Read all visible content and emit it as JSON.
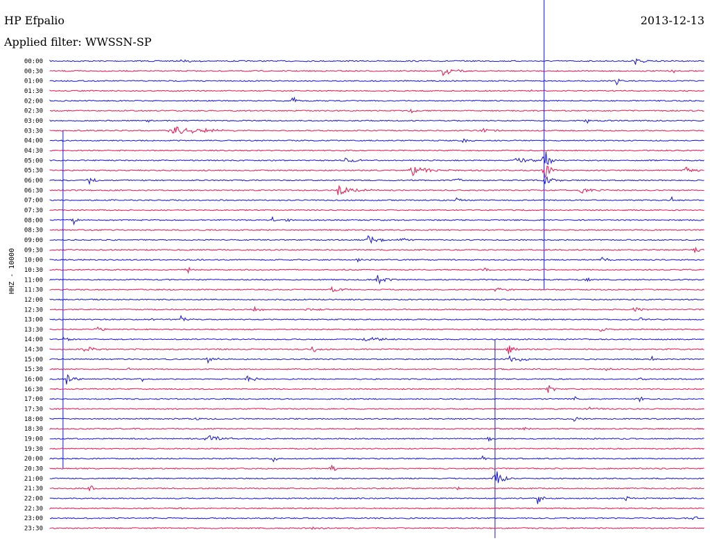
{
  "header": {
    "station": "HP Efpalio",
    "date": "2013-12-13",
    "filter": "Applied filter: WWSSN-SP",
    "channel_label": "HHZ - 10000"
  },
  "colors": {
    "blue": "#1010e0",
    "red": "#f0104a"
  },
  "chart_data": {
    "type": "line",
    "title": "",
    "rows": [
      "00:00",
      "00:30",
      "01:00",
      "01:30",
      "02:00",
      "02:30",
      "03:00",
      "03:30",
      "04:00",
      "04:30",
      "05:00",
      "05:30",
      "06:00",
      "06:30",
      "07:00",
      "07:30",
      "08:00",
      "08:30",
      "09:00",
      "09:30",
      "10:00",
      "10:30",
      "11:00",
      "11:30",
      "12:00",
      "12:30",
      "13:00",
      "13:30",
      "14:00",
      "14:30",
      "15:00",
      "15:30",
      "16:00",
      "16:30",
      "17:00",
      "17:30",
      "18:00",
      "18:30",
      "19:00",
      "19:30",
      "20:00",
      "20:30",
      "21:00",
      "21:30",
      "22:00",
      "22:30",
      "23:00",
      "23:30"
    ],
    "row_colors": [
      "blue",
      "red"
    ],
    "events": [
      {
        "row": 0,
        "x": 0.2,
        "amp": 0.3,
        "dur": 0.03
      },
      {
        "row": 0,
        "x": 0.893,
        "amp": 0.9,
        "dur": 0.02
      },
      {
        "row": 1,
        "x": 0.6,
        "amp": 0.9,
        "dur": 0.03
      },
      {
        "row": 1,
        "x": 0.95,
        "amp": 0.4,
        "dur": 0.01
      },
      {
        "row": 2,
        "x": 0.865,
        "amp": 1.0,
        "dur": 0.01
      },
      {
        "row": 3,
        "x": 0.73,
        "amp": 0.4,
        "dur": 0.01
      },
      {
        "row": 4,
        "x": 0.37,
        "amp": 1.0,
        "dur": 0.01
      },
      {
        "row": 5,
        "x": 0.55,
        "amp": 0.6,
        "dur": 0.01
      },
      {
        "row": 6,
        "x": 0.15,
        "amp": 0.4,
        "dur": 0.01
      },
      {
        "row": 6,
        "x": 0.82,
        "amp": 0.8,
        "dur": 0.01
      },
      {
        "row": 7,
        "x": 0.185,
        "amp": 0.9,
        "dur": 0.09
      },
      {
        "row": 7,
        "x": 0.66,
        "amp": 0.5,
        "dur": 0.04
      },
      {
        "row": 8,
        "x": 0.63,
        "amp": 0.3,
        "dur": 0.04
      },
      {
        "row": 10,
        "x": 0.45,
        "amp": 0.4,
        "dur": 0.04
      },
      {
        "row": 10,
        "x": 0.71,
        "amp": 0.5,
        "dur": 0.06
      },
      {
        "row": 10,
        "x": 0.755,
        "amp": 2.5,
        "dur": 0.015
      },
      {
        "row": 11,
        "x": 0.55,
        "amp": 0.9,
        "dur": 0.06
      },
      {
        "row": 11,
        "x": 0.755,
        "amp": 1.5,
        "dur": 0.02
      },
      {
        "row": 11,
        "x": 0.97,
        "amp": 0.7,
        "dur": 0.03
      },
      {
        "row": 12,
        "x": 0.06,
        "amp": 0.6,
        "dur": 0.02
      },
      {
        "row": 12,
        "x": 0.62,
        "amp": 1.0,
        "dur": 0.01
      },
      {
        "row": 12,
        "x": 0.755,
        "amp": 1.3,
        "dur": 0.02
      },
      {
        "row": 13,
        "x": 0.29,
        "amp": 0.5,
        "dur": 0.01
      },
      {
        "row": 13,
        "x": 0.44,
        "amp": 0.8,
        "dur": 0.05
      },
      {
        "row": 13,
        "x": 0.81,
        "amp": 0.6,
        "dur": 0.04
      },
      {
        "row": 14,
        "x": 0.62,
        "amp": 0.8,
        "dur": 0.01
      },
      {
        "row": 14,
        "x": 0.95,
        "amp": 0.5,
        "dur": 0.01
      },
      {
        "row": 16,
        "x": 0.035,
        "amp": 0.9,
        "dur": 0.01
      },
      {
        "row": 16,
        "x": 0.34,
        "amp": 0.9,
        "dur": 0.01
      },
      {
        "row": 16,
        "x": 0.36,
        "amp": 0.7,
        "dur": 0.01
      },
      {
        "row": 18,
        "x": 0.485,
        "amp": 0.9,
        "dur": 0.03
      },
      {
        "row": 18,
        "x": 0.53,
        "amp": 0.5,
        "dur": 0.03
      },
      {
        "row": 19,
        "x": 0.985,
        "amp": 0.9,
        "dur": 0.01
      },
      {
        "row": 20,
        "x": 0.47,
        "amp": 0.5,
        "dur": 0.02
      },
      {
        "row": 20,
        "x": 0.84,
        "amp": 0.6,
        "dur": 0.02
      },
      {
        "row": 21,
        "x": 0.21,
        "amp": 0.6,
        "dur": 0.01
      },
      {
        "row": 21,
        "x": 0.66,
        "amp": 0.4,
        "dur": 0.03
      },
      {
        "row": 22,
        "x": 0.5,
        "amp": 1.0,
        "dur": 0.02
      },
      {
        "row": 22,
        "x": 0.73,
        "amp": 0.5,
        "dur": 0.01
      },
      {
        "row": 22,
        "x": 0.82,
        "amp": 0.6,
        "dur": 0.01
      },
      {
        "row": 23,
        "x": 0.43,
        "amp": 0.4,
        "dur": 0.05
      },
      {
        "row": 23,
        "x": 0.68,
        "amp": 0.4,
        "dur": 0.03
      },
      {
        "row": 25,
        "x": 0.31,
        "amp": 0.6,
        "dur": 0.02
      },
      {
        "row": 25,
        "x": 0.39,
        "amp": 0.4,
        "dur": 0.03
      },
      {
        "row": 25,
        "x": 0.89,
        "amp": 0.8,
        "dur": 0.02
      },
      {
        "row": 26,
        "x": 0.15,
        "amp": 0.6,
        "dur": 0.01
      },
      {
        "row": 26,
        "x": 0.2,
        "amp": 0.7,
        "dur": 0.02
      },
      {
        "row": 26,
        "x": 0.9,
        "amp": 0.5,
        "dur": 0.02
      },
      {
        "row": 27,
        "x": 0.07,
        "amp": 0.5,
        "dur": 0.02
      },
      {
        "row": 27,
        "x": 0.84,
        "amp": 0.5,
        "dur": 0.02
      },
      {
        "row": 28,
        "x": 0.02,
        "amp": 0.4,
        "dur": 0.02
      },
      {
        "row": 28,
        "x": 0.48,
        "amp": 0.6,
        "dur": 0.05
      },
      {
        "row": 29,
        "x": 0.05,
        "amp": 0.5,
        "dur": 0.05
      },
      {
        "row": 29,
        "x": 0.4,
        "amp": 0.6,
        "dur": 0.02
      },
      {
        "row": 29,
        "x": 0.7,
        "amp": 0.9,
        "dur": 0.02
      },
      {
        "row": 30,
        "x": 0.24,
        "amp": 0.8,
        "dur": 0.02
      },
      {
        "row": 30,
        "x": 0.7,
        "amp": 0.7,
        "dur": 0.04
      },
      {
        "row": 30,
        "x": 0.92,
        "amp": 0.5,
        "dur": 0.01
      },
      {
        "row": 31,
        "x": 0.12,
        "amp": 0.5,
        "dur": 0.01
      },
      {
        "row": 31,
        "x": 0.85,
        "amp": 0.4,
        "dur": 0.01
      },
      {
        "row": 32,
        "x": 0.025,
        "amp": 1.2,
        "dur": 0.02
      },
      {
        "row": 32,
        "x": 0.14,
        "amp": 0.5,
        "dur": 0.01
      },
      {
        "row": 32,
        "x": 0.3,
        "amp": 1.0,
        "dur": 0.02
      },
      {
        "row": 32,
        "x": 0.9,
        "amp": 0.9,
        "dur": 0.01
      },
      {
        "row": 33,
        "x": 0.76,
        "amp": 1.2,
        "dur": 0.015
      },
      {
        "row": 34,
        "x": 0.8,
        "amp": 0.6,
        "dur": 0.01
      },
      {
        "row": 34,
        "x": 0.9,
        "amp": 0.7,
        "dur": 0.01
      },
      {
        "row": 35,
        "x": 0.82,
        "amp": 0.6,
        "dur": 0.02
      },
      {
        "row": 36,
        "x": 0.22,
        "amp": 0.6,
        "dur": 0.01
      },
      {
        "row": 36,
        "x": 0.8,
        "amp": 0.5,
        "dur": 0.02
      },
      {
        "row": 37,
        "x": 0.72,
        "amp": 0.6,
        "dur": 0.01
      },
      {
        "row": 38,
        "x": 0.24,
        "amp": 0.7,
        "dur": 0.04
      },
      {
        "row": 38,
        "x": 0.67,
        "amp": 0.8,
        "dur": 0.01
      },
      {
        "row": 40,
        "x": 0.34,
        "amp": 0.7,
        "dur": 0.01
      },
      {
        "row": 40,
        "x": 0.66,
        "amp": 0.7,
        "dur": 0.01
      },
      {
        "row": 41,
        "x": 0.43,
        "amp": 0.8,
        "dur": 0.01
      },
      {
        "row": 42,
        "x": 0.68,
        "amp": 1.5,
        "dur": 0.02
      },
      {
        "row": 43,
        "x": 0.06,
        "amp": 0.9,
        "dur": 0.01
      },
      {
        "row": 43,
        "x": 0.62,
        "amp": 0.5,
        "dur": 0.01
      },
      {
        "row": 44,
        "x": 0.745,
        "amp": 1.0,
        "dur": 0.015
      },
      {
        "row": 44,
        "x": 0.88,
        "amp": 0.6,
        "dur": 0.01
      },
      {
        "row": 45,
        "x": 0.2,
        "amp": 0.4,
        "dur": 0.01
      },
      {
        "row": 46,
        "x": 0.98,
        "amp": 0.5,
        "dur": 0.02
      },
      {
        "row": 47,
        "x": 0.4,
        "amp": 0.3,
        "dur": 0.02
      }
    ],
    "spikes": [
      {
        "row": 8,
        "x": 0.755,
        "len": 15
      },
      {
        "row": 24,
        "x": 0.02,
        "len": 17
      },
      {
        "row": 38,
        "x": 0.68,
        "len": 10
      }
    ]
  }
}
